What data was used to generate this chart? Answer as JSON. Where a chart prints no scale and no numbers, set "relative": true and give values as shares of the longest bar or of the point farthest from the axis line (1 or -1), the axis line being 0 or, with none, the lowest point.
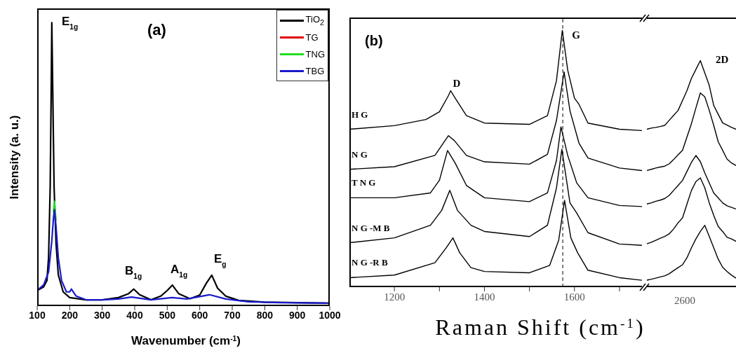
{
  "chart_data": [
    {
      "type": "line",
      "title": "(a)",
      "xlabel": "Wavenumber (cm$^{-1}$)",
      "ylabel": "Intensity (a. u.)",
      "relative": true,
      "xlim": [
        100,
        1000
      ],
      "xticks": [
        100,
        200,
        300,
        400,
        500,
        600,
        700,
        800,
        900,
        1000
      ],
      "legend": "top right",
      "annotations": [
        "E$_{1g}$",
        "B$_{1g}$",
        "A$_{1g}$",
        "E$_{g}$"
      ],
      "series": [
        {
          "name": "TiO$_{2}$",
          "color": "#000000",
          "x": [
            100,
            120,
            130,
            135,
            140,
            143,
            145,
            148,
            152,
            158,
            165,
            180,
            200,
            250,
            300,
            350,
            380,
            397,
            415,
            450,
            480,
            500,
            516,
            535,
            570,
            600,
            620,
            637,
            655,
            680,
            720,
            800,
            900,
            1000
          ],
          "values": [
            0.055,
            0.068,
            0.09,
            0.17,
            0.42,
            0.75,
            1.0,
            0.75,
            0.42,
            0.22,
            0.11,
            0.05,
            0.03,
            0.022,
            0.022,
            0.03,
            0.043,
            0.06,
            0.04,
            0.022,
            0.035,
            0.055,
            0.074,
            0.044,
            0.026,
            0.039,
            0.08,
            0.109,
            0.063,
            0.035,
            0.02,
            0.014,
            0.012,
            0.01
          ]
        },
        {
          "name": "TG",
          "color": "#e00000"
        },
        {
          "name": "TNG",
          "color": "#22dd22",
          "x": [
            150,
            153,
            158
          ],
          "values": [
            0.33,
            0.37,
            0.3
          ]
        },
        {
          "name": "TBG",
          "color": "#1a1acc",
          "x": [
            100,
            120,
            135,
            145,
            150,
            153,
            158,
            165,
            175,
            190,
            200,
            205,
            220,
            250,
            300,
            350,
            390,
            450,
            515,
            560,
            630,
            680,
            750,
            850,
            1000
          ],
          "values": [
            0.055,
            0.075,
            0.12,
            0.23,
            0.31,
            0.34,
            0.28,
            0.17,
            0.09,
            0.05,
            0.05,
            0.06,
            0.035,
            0.022,
            0.022,
            0.025,
            0.032,
            0.022,
            0.03,
            0.025,
            0.04,
            0.025,
            0.015,
            0.012,
            0.01
          ]
        }
      ]
    },
    {
      "type": "line",
      "title": "(b)",
      "xlabel": "Raman Shift (cm$^{-1}$)",
      "relative": true,
      "xlim": [
        1100,
        1750
      ],
      "xticks": [
        1200,
        {
          "value": 1300,
          "label": null
        },
        1400,
        {
          "value": 1500,
          "label": null
        },
        1600,
        {
          "value": 1700,
          "label": null
        }
      ],
      "ref_lines": [
        {
          "axis": "x",
          "value": 1574,
          "line_style": "dashed",
          "color": "#000000"
        }
      ],
      "annotations": [
        "D",
        "G"
      ],
      "series": [
        {
          "name": "H G",
          "color": "#000000",
          "x": [
            1100,
            1200,
            1270,
            1300,
            1320,
            1325,
            1335,
            1360,
            1400,
            1500,
            1540,
            1560,
            1573,
            1585,
            1600,
            1610,
            1630,
            1700,
            1750
          ],
          "values": [
            0.615,
            0.629,
            0.653,
            0.683,
            0.746,
            0.765,
            0.736,
            0.668,
            0.639,
            0.634,
            0.668,
            0.804,
            1.0,
            0.845,
            0.736,
            0.712,
            0.639,
            0.615,
            0.61
          ]
        },
        {
          "name": "N G",
          "color": "#000000",
          "x": [
            1100,
            1200,
            1290,
            1320,
            1333,
            1360,
            1400,
            1500,
            1540,
            1560,
            1577,
            1590,
            1610,
            1630,
            1700,
            1750
          ],
          "values": [
            0.459,
            0.469,
            0.513,
            0.59,
            0.571,
            0.513,
            0.488,
            0.479,
            0.517,
            0.649,
            0.838,
            0.687,
            0.561,
            0.503,
            0.464,
            0.454
          ]
        },
        {
          "name": "T N G",
          "color": "#000000",
          "x": [
            1100,
            1200,
            1280,
            1300,
            1318,
            1335,
            1360,
            1400,
            1500,
            1540,
            1560,
            1570,
            1585,
            1605,
            1630,
            1700,
            1750
          ],
          "values": [
            0.348,
            0.348,
            0.367,
            0.416,
            0.532,
            0.483,
            0.396,
            0.348,
            0.333,
            0.367,
            0.493,
            0.624,
            0.513,
            0.406,
            0.348,
            0.318,
            0.314
          ]
        },
        {
          "name": "N G -M B",
          "color": "#000000",
          "x": [
            1100,
            1200,
            1280,
            1305,
            1323,
            1340,
            1370,
            1400,
            1500,
            1540,
            1560,
            1572,
            1590,
            1605,
            1630,
            1700,
            1750
          ],
          "values": [
            0.173,
            0.192,
            0.241,
            0.299,
            0.377,
            0.299,
            0.241,
            0.217,
            0.197,
            0.241,
            0.386,
            0.537,
            0.328,
            0.289,
            0.212,
            0.168,
            0.163
          ]
        },
        {
          "name": "N G -R B",
          "color": "#000000",
          "x": [
            1100,
            1200,
            1290,
            1315,
            1330,
            1345,
            1370,
            1400,
            1500,
            1545,
            1565,
            1578,
            1592,
            1607,
            1630,
            1700,
            1750
          ],
          "values": [
            0.037,
            0.047,
            0.095,
            0.153,
            0.192,
            0.134,
            0.076,
            0.061,
            0.056,
            0.085,
            0.183,
            0.338,
            0.192,
            0.134,
            0.066,
            0.037,
            0.027
          ]
        }
      ]
    },
    {
      "type": "line",
      "relative": true,
      "categories": [
        null,
        null,
        null,
        null,
        null,
        null,
        null,
        null,
        null,
        null,
        null,
        null,
        null,
        null,
        null,
        null,
        null,
        null,
        null,
        null,
        null
      ],
      "annotations": [
        "2D",
        "2600"
      ],
      "series": [
        {
          "color": "#000000",
          "values": [
            0.697,
            0.702,
            0.705,
            0.709,
            0.714,
            0.736,
            0.758,
            0.78,
            0.824,
            0.868,
            0.922,
            0.961,
            1.0,
            0.945,
            0.89,
            0.802,
            0.763,
            0.725,
            0.715,
            0.705,
            0.697
          ]
        },
        {
          "color": "#000000",
          "values": [
            0.515,
            0.52,
            0.526,
            0.53,
            0.534,
            0.544,
            0.563,
            0.584,
            0.604,
            0.663,
            0.722,
            0.791,
            0.857,
            0.84,
            0.78,
            0.714,
            0.642,
            0.604,
            0.565,
            0.548,
            0.537
          ]
        },
        {
          "color": "#000000",
          "values": [
            0.367,
            0.372,
            0.379,
            0.384,
            0.391,
            0.405,
            0.427,
            0.449,
            0.471,
            0.511,
            0.551,
            0.581,
            0.554,
            0.504,
            0.46,
            0.416,
            0.394,
            0.372,
            0.359,
            0.352,
            0.345
          ]
        },
        {
          "color": "#000000",
          "values": [
            0.191,
            0.198,
            0.207,
            0.216,
            0.224,
            0.235,
            0.257,
            0.284,
            0.306,
            0.367,
            0.427,
            0.466,
            0.482,
            0.438,
            0.372,
            0.317,
            0.268,
            0.246,
            0.22,
            0.213,
            0.202
          ]
        },
        {
          "color": "#000000",
          "values": [
            0.031,
            0.035,
            0.04,
            0.045,
            0.05,
            0.059,
            0.073,
            0.086,
            0.099,
            0.13,
            0.174,
            0.213,
            0.246,
            0.273,
            0.224,
            0.174,
            0.124,
            0.088,
            0.069,
            0.053,
            0.04
          ]
        }
      ]
    }
  ]
}
